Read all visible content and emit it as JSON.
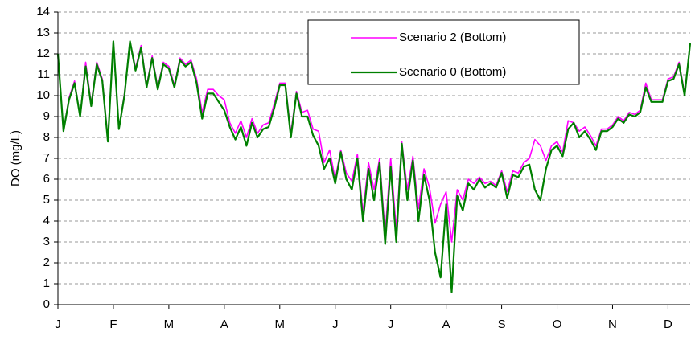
{
  "chart_data": {
    "type": "line",
    "y_label": "DO (mg/L)",
    "categories": [
      "J",
      null,
      null,
      null,
      null,
      null,
      null,
      null,
      null,
      null,
      "F",
      null,
      null,
      null,
      null,
      null,
      null,
      null,
      null,
      null,
      "M",
      null,
      null,
      null,
      null,
      null,
      null,
      null,
      null,
      null,
      "A",
      null,
      null,
      null,
      null,
      null,
      null,
      null,
      null,
      null,
      "M",
      null,
      null,
      null,
      null,
      null,
      null,
      null,
      null,
      null,
      "J",
      null,
      null,
      null,
      null,
      null,
      null,
      null,
      null,
      null,
      "J",
      null,
      null,
      null,
      null,
      null,
      null,
      null,
      null,
      null,
      "A",
      null,
      null,
      null,
      null,
      null,
      null,
      null,
      null,
      null,
      "S",
      null,
      null,
      null,
      null,
      null,
      null,
      null,
      null,
      null,
      "O",
      null,
      null,
      null,
      null,
      null,
      null,
      null,
      null,
      null,
      "N",
      null,
      null,
      null,
      null,
      null,
      null,
      null,
      null,
      null,
      "D",
      null,
      null,
      null,
      null
    ],
    "series": [
      {
        "name": "Scenario 2 (Bottom)",
        "color": "#ff00ff",
        "width": 1.6,
        "values": [
          12.0,
          8.3,
          9.9,
          10.7,
          9.0,
          11.6,
          9.6,
          11.6,
          10.8,
          7.9,
          12.6,
          8.4,
          10.1,
          12.6,
          11.3,
          12.4,
          10.5,
          11.9,
          10.4,
          11.6,
          11.4,
          10.5,
          11.8,
          11.5,
          11.7,
          10.8,
          9.2,
          10.3,
          10.3,
          10.0,
          9.8,
          8.7,
          8.2,
          8.8,
          8.0,
          8.9,
          8.2,
          8.6,
          8.7,
          9.6,
          10.6,
          10.6,
          8.2,
          10.2,
          9.2,
          9.3,
          8.4,
          8.3,
          6.8,
          7.4,
          6.0,
          7.4,
          6.3,
          5.9,
          7.2,
          4.4,
          6.8,
          5.5,
          7.0,
          3.4,
          7.0,
          3.6,
          7.8,
          5.5,
          7.1,
          4.6,
          6.5,
          5.6,
          3.9,
          4.8,
          5.4,
          3.0,
          5.5,
          5.0,
          6.0,
          5.8,
          6.1,
          5.8,
          5.9,
          5.7,
          6.4,
          5.4,
          6.4,
          6.3,
          6.8,
          7.0,
          7.9,
          7.6,
          6.9,
          7.6,
          7.8,
          7.3,
          8.8,
          8.7,
          8.3,
          8.5,
          8.1,
          7.6,
          8.4,
          8.4,
          8.6,
          9.0,
          8.8,
          9.2,
          9.1,
          9.3,
          10.6,
          9.8,
          9.8,
          9.8,
          10.8,
          10.9,
          11.6,
          10.1,
          12.5
        ]
      },
      {
        "name": "Scenario 0 (Bottom)",
        "color": "#008000",
        "width": 2.2,
        "values": [
          12.0,
          8.3,
          9.8,
          10.6,
          9.0,
          11.4,
          9.5,
          11.5,
          10.7,
          7.8,
          12.6,
          8.4,
          10.0,
          12.6,
          11.2,
          12.3,
          10.4,
          11.8,
          10.3,
          11.5,
          11.3,
          10.4,
          11.7,
          11.4,
          11.6,
          10.6,
          8.9,
          10.1,
          10.1,
          9.7,
          9.3,
          8.5,
          7.9,
          8.5,
          7.6,
          8.7,
          8.0,
          8.4,
          8.5,
          9.4,
          10.5,
          10.5,
          8.0,
          10.1,
          9.0,
          9.0,
          8.1,
          7.6,
          6.5,
          7.0,
          5.8,
          7.3,
          6.0,
          5.5,
          7.0,
          4.0,
          6.5,
          5.0,
          6.8,
          2.9,
          6.6,
          3.0,
          7.7,
          5.0,
          6.9,
          4.0,
          6.2,
          5.0,
          2.5,
          1.3,
          4.8,
          0.6,
          5.2,
          4.5,
          5.8,
          5.5,
          6.0,
          5.6,
          5.8,
          5.6,
          6.3,
          5.1,
          6.2,
          6.1,
          6.6,
          6.7,
          5.5,
          5.0,
          6.5,
          7.4,
          7.6,
          7.1,
          8.4,
          8.7,
          8.0,
          8.3,
          7.9,
          7.4,
          8.3,
          8.3,
          8.5,
          8.9,
          8.7,
          9.1,
          9.0,
          9.2,
          10.4,
          9.7,
          9.7,
          9.7,
          10.7,
          10.8,
          11.5,
          10.0,
          12.5
        ]
      }
    ],
    "ylim": [
      0,
      14
    ],
    "yticks": [
      0,
      1,
      2,
      3,
      4,
      5,
      6,
      7,
      8,
      9,
      10,
      11,
      12,
      13,
      14
    ],
    "grid": true,
    "legend": "top-right"
  }
}
